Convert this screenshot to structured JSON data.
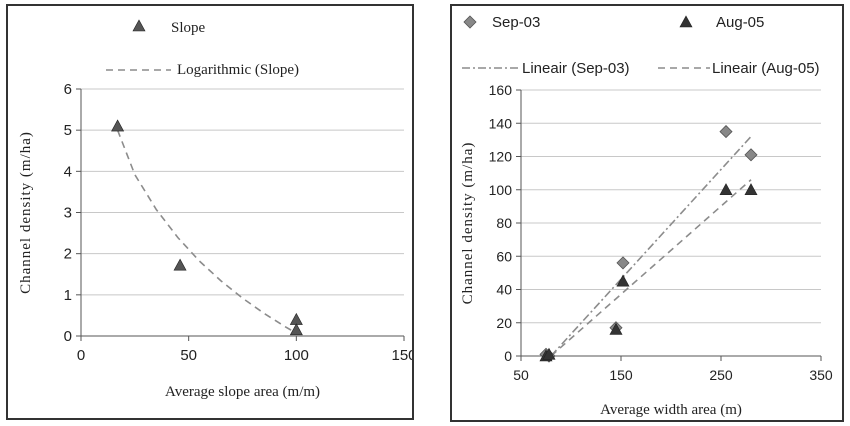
{
  "chart_data": [
    {
      "type": "scatter",
      "xlabel": "Average slope area (m/m)",
      "ylabel": "Channel density (m/ha)",
      "xlim": [
        0,
        150
      ],
      "ylim": [
        0,
        6
      ],
      "xticks": [
        "0",
        "50",
        "100",
        "150"
      ],
      "yticks": [
        "0",
        "1",
        "2",
        "3",
        "4",
        "5",
        "6"
      ],
      "grid": "horizontal",
      "legend_position": "top",
      "series": [
        {
          "name": "Slope",
          "marker": "triangle",
          "color": "#555555",
          "x": [
            17,
            46,
            100,
            100
          ],
          "y": [
            5.1,
            1.72,
            0.4,
            0.15
          ]
        }
      ],
      "trendlines": [
        {
          "name": "Logarithmic (Slope)",
          "style": "dashed",
          "color": "#8c8c8c",
          "x": [
            17,
            25,
            35,
            45,
            55,
            65,
            75,
            85,
            95,
            100
          ],
          "y": [
            5.0,
            3.92,
            3.07,
            2.39,
            1.82,
            1.34,
            0.92,
            0.55,
            0.22,
            0.07
          ]
        }
      ]
    },
    {
      "type": "scatter",
      "xlabel": "Average width area (m)",
      "ylabel": "Channel density (m/ha)",
      "xlim": [
        50,
        350
      ],
      "ylim": [
        0,
        160
      ],
      "xticks": [
        "50",
        "150",
        "250",
        "350"
      ],
      "yticks": [
        "0",
        "20",
        "40",
        "60",
        "80",
        "100",
        "120",
        "140",
        "160"
      ],
      "grid": "horizontal",
      "legend_position": "top",
      "series": [
        {
          "name": "Sep-03",
          "marker": "diamond",
          "color": "#888888",
          "x": [
            75,
            78,
            145,
            152,
            255,
            280
          ],
          "y": [
            1,
            0,
            17,
            56,
            135,
            121
          ]
        },
        {
          "name": "Aug-05",
          "marker": "triangle",
          "color": "#333333",
          "x": [
            75,
            78,
            145,
            152,
            255,
            280
          ],
          "y": [
            0,
            1,
            16,
            45,
            100,
            100
          ]
        }
      ],
      "trendlines": [
        {
          "name": "Lineair (Sep-03)",
          "style": "dash-dot",
          "color": "#8c8c8c",
          "x": [
            80,
            280
          ],
          "y": [
            0,
            132
          ]
        },
        {
          "name": "Lineair (Aug-05)",
          "style": "dashed",
          "color": "#8c8c8c",
          "x": [
            80,
            280
          ],
          "y": [
            0,
            106
          ]
        }
      ]
    }
  ]
}
